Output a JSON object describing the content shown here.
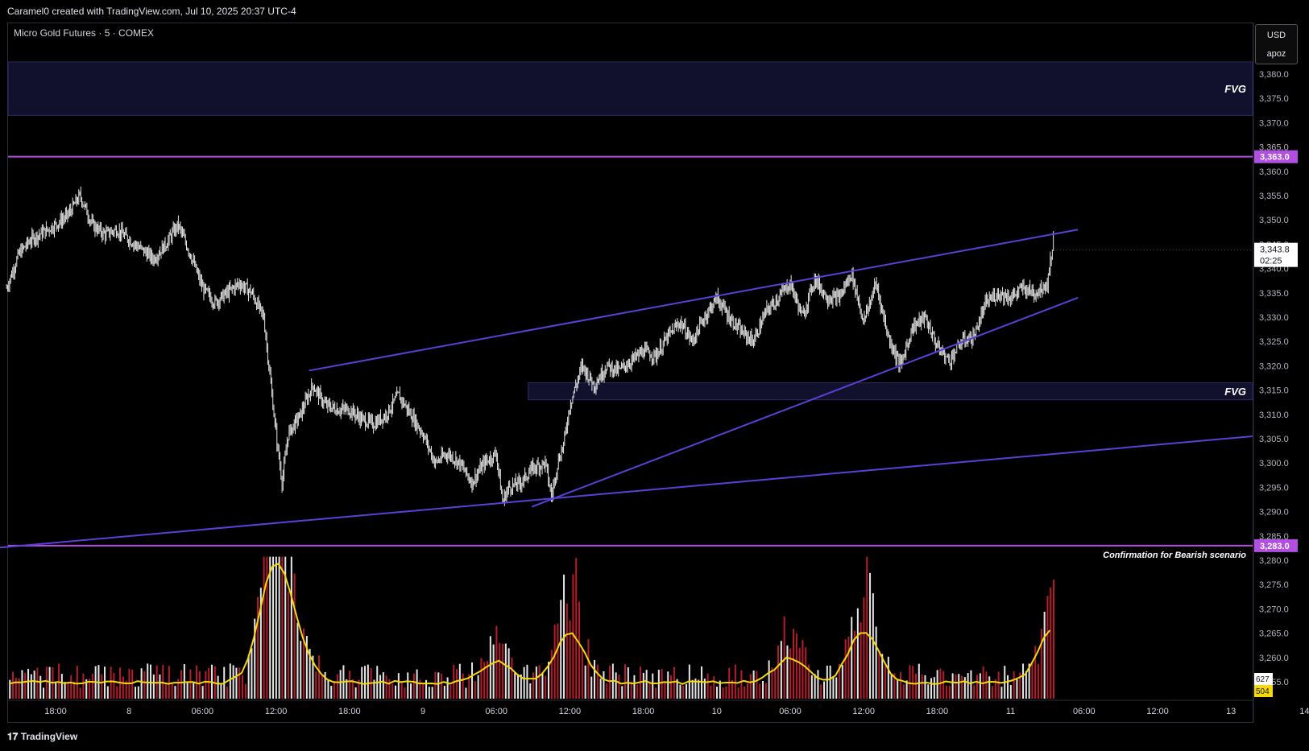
{
  "header": {
    "created_by": "Caramel0 created with TradingView.com, Jul 10, 2025 20:37 UTC-4"
  },
  "symbol": {
    "label": "Micro Gold Futures · 5 · COMEX"
  },
  "scale_box": {
    "currency": "USD",
    "user": "apoz"
  },
  "footer": {
    "logo_text": "TradingView"
  },
  "colors": {
    "background": "#000000",
    "candle": "#e6e6e6",
    "trendline": "#5b3fd6",
    "level_line": "#b04fe0",
    "fvg_zone": "#1a1840",
    "volume_up": "#e6e6e6",
    "volume_down": "#b81c2a",
    "volume_ma": "#f5d90a",
    "price_tag": "#ffffff"
  },
  "chart_data": {
    "type": "candlestick",
    "instrument": "Micro Gold Futures",
    "interval": "5",
    "exchange": "COMEX",
    "y_ticks": [
      "3,380.0",
      "3,375.0",
      "3,370.0",
      "3,365.0",
      "3,360.0",
      "3,355.0",
      "3,350.0",
      "3,345.0",
      "3,340.0",
      "3,335.0",
      "3,330.0",
      "3,325.0",
      "3,320.0",
      "3,315.0",
      "3,310.0",
      "3,305.0",
      "3,300.0",
      "3,295.0",
      "3,290.0",
      "3,285.0",
      "3,280.0",
      "3,275.0",
      "3,270.0",
      "3,265.0",
      "3,260.0",
      "3,255.0"
    ],
    "x_ticks": [
      {
        "label": "18:00",
        "t": 0
      },
      {
        "label": "8",
        "t": 6
      },
      {
        "label": "06:00",
        "t": 12
      },
      {
        "label": "12:00",
        "t": 18
      },
      {
        "label": "18:00",
        "t": 24
      },
      {
        "label": "9",
        "t": 30
      },
      {
        "label": "06:00",
        "t": 36
      },
      {
        "label": "12:00",
        "t": 42
      },
      {
        "label": "18:00",
        "t": 48
      },
      {
        "label": "10",
        "t": 54
      },
      {
        "label": "06:00",
        "t": 60
      },
      {
        "label": "12:00",
        "t": 66
      },
      {
        "label": "18:00",
        "t": 72
      },
      {
        "label": "11",
        "t": 78
      },
      {
        "label": "06:00",
        "t": 84
      },
      {
        "label": "12:00",
        "t": 90
      },
      {
        "label": "13",
        "t": 96
      },
      {
        "label": "14",
        "t": 102
      }
    ],
    "price_path": [
      {
        "t": -4,
        "p": 3336
      },
      {
        "t": -3,
        "p": 3343
      },
      {
        "t": -2,
        "p": 3346
      },
      {
        "t": 0,
        "p": 3349
      },
      {
        "t": 1,
        "p": 3351
      },
      {
        "t": 2,
        "p": 3355
      },
      {
        "t": 3,
        "p": 3349
      },
      {
        "t": 4,
        "p": 3347
      },
      {
        "t": 5,
        "p": 3348
      },
      {
        "t": 6,
        "p": 3346
      },
      {
        "t": 7,
        "p": 3344
      },
      {
        "t": 8,
        "p": 3342
      },
      {
        "t": 9,
        "p": 3345
      },
      {
        "t": 10,
        "p": 3349
      },
      {
        "t": 11,
        "p": 3343
      },
      {
        "t": 12,
        "p": 3336
      },
      {
        "t": 13,
        "p": 3333
      },
      {
        "t": 14,
        "p": 3335
      },
      {
        "t": 15,
        "p": 3337
      },
      {
        "t": 16,
        "p": 3335
      },
      {
        "t": 17,
        "p": 3330
      },
      {
        "t": 17.5,
        "p": 3318
      },
      {
        "t": 18,
        "p": 3306
      },
      {
        "t": 18.5,
        "p": 3296
      },
      {
        "t": 19,
        "p": 3306
      },
      {
        "t": 20,
        "p": 3310
      },
      {
        "t": 21,
        "p": 3316
      },
      {
        "t": 22,
        "p": 3312
      },
      {
        "t": 23,
        "p": 3311
      },
      {
        "t": 24,
        "p": 3311
      },
      {
        "t": 25,
        "p": 3309
      },
      {
        "t": 26,
        "p": 3308
      },
      {
        "t": 27,
        "p": 3310
      },
      {
        "t": 28,
        "p": 3314
      },
      {
        "t": 29,
        "p": 3310
      },
      {
        "t": 30,
        "p": 3306
      },
      {
        "t": 31,
        "p": 3300
      },
      {
        "t": 32,
        "p": 3302
      },
      {
        "t": 33,
        "p": 3300
      },
      {
        "t": 34,
        "p": 3296
      },
      {
        "t": 35,
        "p": 3300
      },
      {
        "t": 36,
        "p": 3302
      },
      {
        "t": 36.5,
        "p": 3292
      },
      {
        "t": 37,
        "p": 3295
      },
      {
        "t": 38,
        "p": 3296
      },
      {
        "t": 39,
        "p": 3299
      },
      {
        "t": 40,
        "p": 3300
      },
      {
        "t": 40.5,
        "p": 3293
      },
      {
        "t": 41,
        "p": 3300
      },
      {
        "t": 41.5,
        "p": 3304
      },
      {
        "t": 42,
        "p": 3312
      },
      {
        "t": 43,
        "p": 3320
      },
      {
        "t": 44,
        "p": 3316
      },
      {
        "t": 45,
        "p": 3320
      },
      {
        "t": 46,
        "p": 3319
      },
      {
        "t": 47,
        "p": 3321
      },
      {
        "t": 48,
        "p": 3323
      },
      {
        "t": 49,
        "p": 3322
      },
      {
        "t": 50,
        "p": 3326
      },
      {
        "t": 51,
        "p": 3329
      },
      {
        "t": 52,
        "p": 3325
      },
      {
        "t": 53,
        "p": 3330
      },
      {
        "t": 54,
        "p": 3334
      },
      {
        "t": 55,
        "p": 3330
      },
      {
        "t": 56,
        "p": 3327
      },
      {
        "t": 57,
        "p": 3325
      },
      {
        "t": 58,
        "p": 3331
      },
      {
        "t": 59,
        "p": 3334
      },
      {
        "t": 60,
        "p": 3337
      },
      {
        "t": 61,
        "p": 3330
      },
      {
        "t": 62,
        "p": 3338
      },
      {
        "t": 63,
        "p": 3334
      },
      {
        "t": 64,
        "p": 3334
      },
      {
        "t": 65,
        "p": 3339
      },
      {
        "t": 66,
        "p": 3329
      },
      {
        "t": 67,
        "p": 3337
      },
      {
        "t": 68,
        "p": 3326
      },
      {
        "t": 69,
        "p": 3320
      },
      {
        "t": 70,
        "p": 3328
      },
      {
        "t": 71,
        "p": 3330
      },
      {
        "t": 72,
        "p": 3324
      },
      {
        "t": 73,
        "p": 3321
      },
      {
        "t": 74,
        "p": 3325
      },
      {
        "t": 75,
        "p": 3326
      },
      {
        "t": 76,
        "p": 3333
      },
      {
        "t": 77,
        "p": 3335
      },
      {
        "t": 78,
        "p": 3334
      },
      {
        "t": 79,
        "p": 3336
      },
      {
        "t": 80,
        "p": 3335
      },
      {
        "t": 81,
        "p": 3337
      },
      {
        "t": 81.5,
        "p": 3346
      }
    ],
    "last_price": "3,343.8",
    "countdown": "02:25",
    "horizontal_levels": [
      {
        "price": 3363.0,
        "label": "3,363.0",
        "note": ""
      },
      {
        "price": 3283.0,
        "label": "3,283.0",
        "note": "Confirmation for Bearish scenario"
      }
    ],
    "fvg_zones": [
      {
        "top": 3382.5,
        "bottom": 3371.5,
        "t_start": -5,
        "label": "FVG"
      },
      {
        "top": 3316.5,
        "bottom": 3313.0,
        "t_start": 38.6,
        "label": "FVG"
      }
    ],
    "trendlines": [
      {
        "t1": 20.7,
        "p1": 3319.0,
        "t2": 83.5,
        "p2": 3348.0
      },
      {
        "t1": 38.9,
        "p1": 3291.0,
        "t2": 83.5,
        "p2": 3334.0
      },
      {
        "t1": -5,
        "p1": 3282.5,
        "t2": 106,
        "p2": 3305.5
      }
    ],
    "volume": {
      "last_volume": "627",
      "volume_ma": "504"
    }
  }
}
